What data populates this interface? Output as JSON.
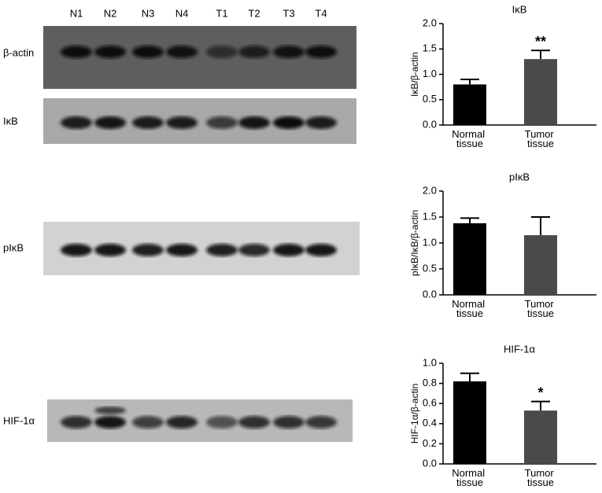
{
  "blots": {
    "lanes": [
      "N1",
      "N2",
      "N3",
      "N4",
      "T1",
      "T2",
      "T3",
      "T4"
    ],
    "rows": [
      "β-actin",
      "IκB",
      "pIκB",
      "HIF-1α"
    ]
  },
  "chart_data": [
    {
      "type": "bar",
      "title": "IκB",
      "y_label": "IκB/β-actin",
      "categories": [
        "Normal tissue",
        "Tumor tissue"
      ],
      "values": [
        0.8,
        1.3
      ],
      "errors": [
        0.1,
        0.17
      ],
      "colors": [
        "#000000",
        "#4a4a4a"
      ],
      "annotations": [
        null,
        "**"
      ],
      "ylim": [
        0,
        2
      ],
      "yticks": [
        {
          "value": 0,
          "label": "0.0"
        },
        {
          "value": 0.5,
          "label": "0.5"
        },
        {
          "value": 1,
          "label": "1.0"
        },
        {
          "value": 1.5,
          "label": "1.5"
        },
        {
          "value": 2,
          "label": "2.0"
        }
      ]
    },
    {
      "type": "bar",
      "title": "pIκB",
      "y_label": "pIκB/IκB/β-actin",
      "categories": [
        "Normal tissue",
        "Tumor tissue"
      ],
      "values": [
        1.38,
        1.15
      ],
      "errors": [
        0.1,
        0.35
      ],
      "colors": [
        "#000000",
        "#4a4a4a"
      ],
      "annotations": [
        null,
        null
      ],
      "ylim": [
        0,
        2
      ],
      "yticks": [
        {
          "value": 0,
          "label": "0.0"
        },
        {
          "value": 0.5,
          "label": "0.5"
        },
        {
          "value": 1,
          "label": "1.0"
        },
        {
          "value": 1.5,
          "label": "1.5"
        },
        {
          "value": 2,
          "label": "2.0"
        }
      ]
    },
    {
      "type": "bar",
      "title": "HIF-1α",
      "y_label": "HIF-1α/β-actin",
      "categories": [
        "Normal tissue",
        "Tumor tissue"
      ],
      "values": [
        0.82,
        0.53
      ],
      "errors": [
        0.08,
        0.09
      ],
      "colors": [
        "#000000",
        "#4a4a4a"
      ],
      "annotations": [
        null,
        "*"
      ],
      "ylim": [
        0,
        1
      ],
      "yticks": [
        {
          "value": 0,
          "label": "0.0"
        },
        {
          "value": 0.2,
          "label": "0.2"
        },
        {
          "value": 0.4,
          "label": "0.4"
        },
        {
          "value": 0.6,
          "label": "0.6"
        },
        {
          "value": 0.8,
          "label": "0.8"
        },
        {
          "value": 1,
          "label": "1.0"
        }
      ]
    }
  ]
}
